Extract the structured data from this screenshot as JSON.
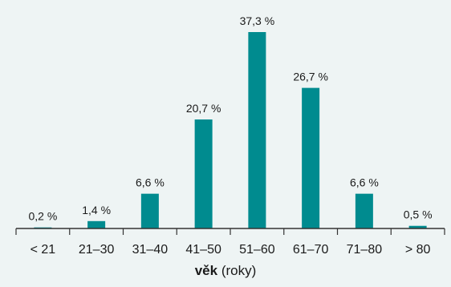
{
  "chart_data": {
    "type": "bar",
    "categories": [
      "< 21",
      "21–30",
      "31–40",
      "41–50",
      "51–60",
      "61–70",
      "71–80",
      "> 80"
    ],
    "values": [
      0.2,
      1.4,
      6.6,
      20.7,
      37.3,
      26.7,
      6.6,
      0.5
    ],
    "value_labels": [
      "0,2 %",
      "1,4 %",
      "6,6 %",
      "20,7 %",
      "37,3 %",
      "26,7 %",
      "6,6 %",
      "0,5 %"
    ],
    "xlabel_bold": "věk",
    "xlabel_rest": " (roky)",
    "ylim": [
      0,
      37.3
    ],
    "grid": false,
    "bar_color": "#008b8f"
  }
}
